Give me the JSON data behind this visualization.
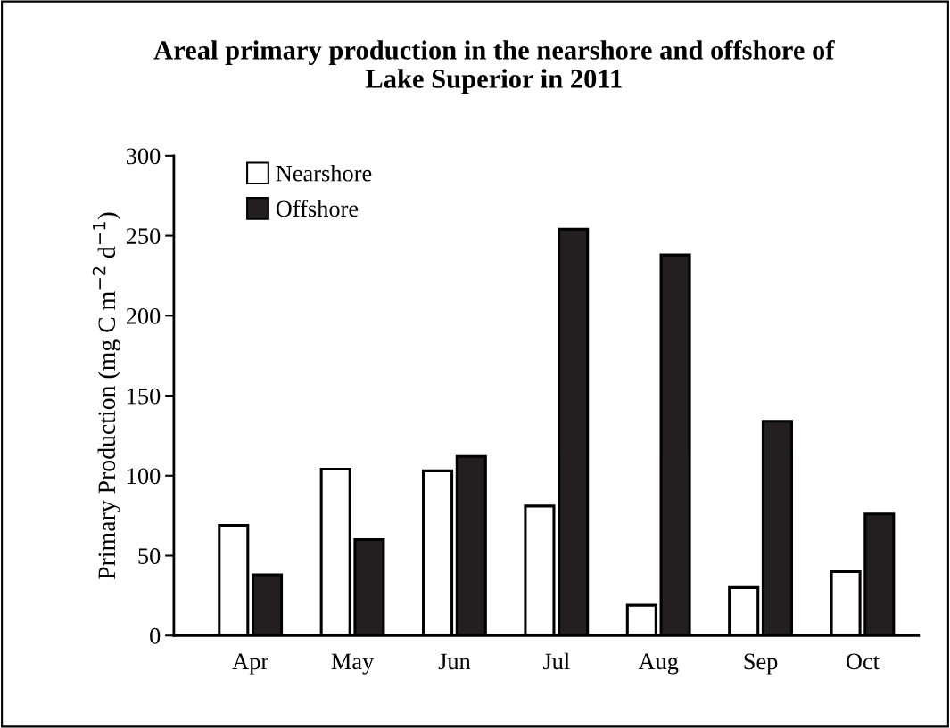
{
  "chart_data": {
    "type": "bar",
    "title": "Areal primary production in the nearshore and offshore of\nLake Superior in 2011",
    "ylabel": "Primary Production (mg C m$^{−2}$ d$^{−1}$)",
    "categories": [
      "Apr",
      "May",
      "Jun",
      "Jul",
      "Aug",
      "Sep",
      "Oct"
    ],
    "series": [
      {
        "name": "Nearshore",
        "color": "#ffffff",
        "values": [
          69,
          104,
          103,
          81,
          19,
          30,
          40
        ]
      },
      {
        "name": "Offshore",
        "color": "#231f20",
        "values": [
          38,
          60,
          112,
          254,
          238,
          134,
          76
        ]
      }
    ],
    "ylim": [
      0,
      300
    ],
    "yticks": [
      0,
      50,
      100,
      150,
      200,
      250,
      300
    ],
    "grid": false,
    "legend": "top left"
  }
}
